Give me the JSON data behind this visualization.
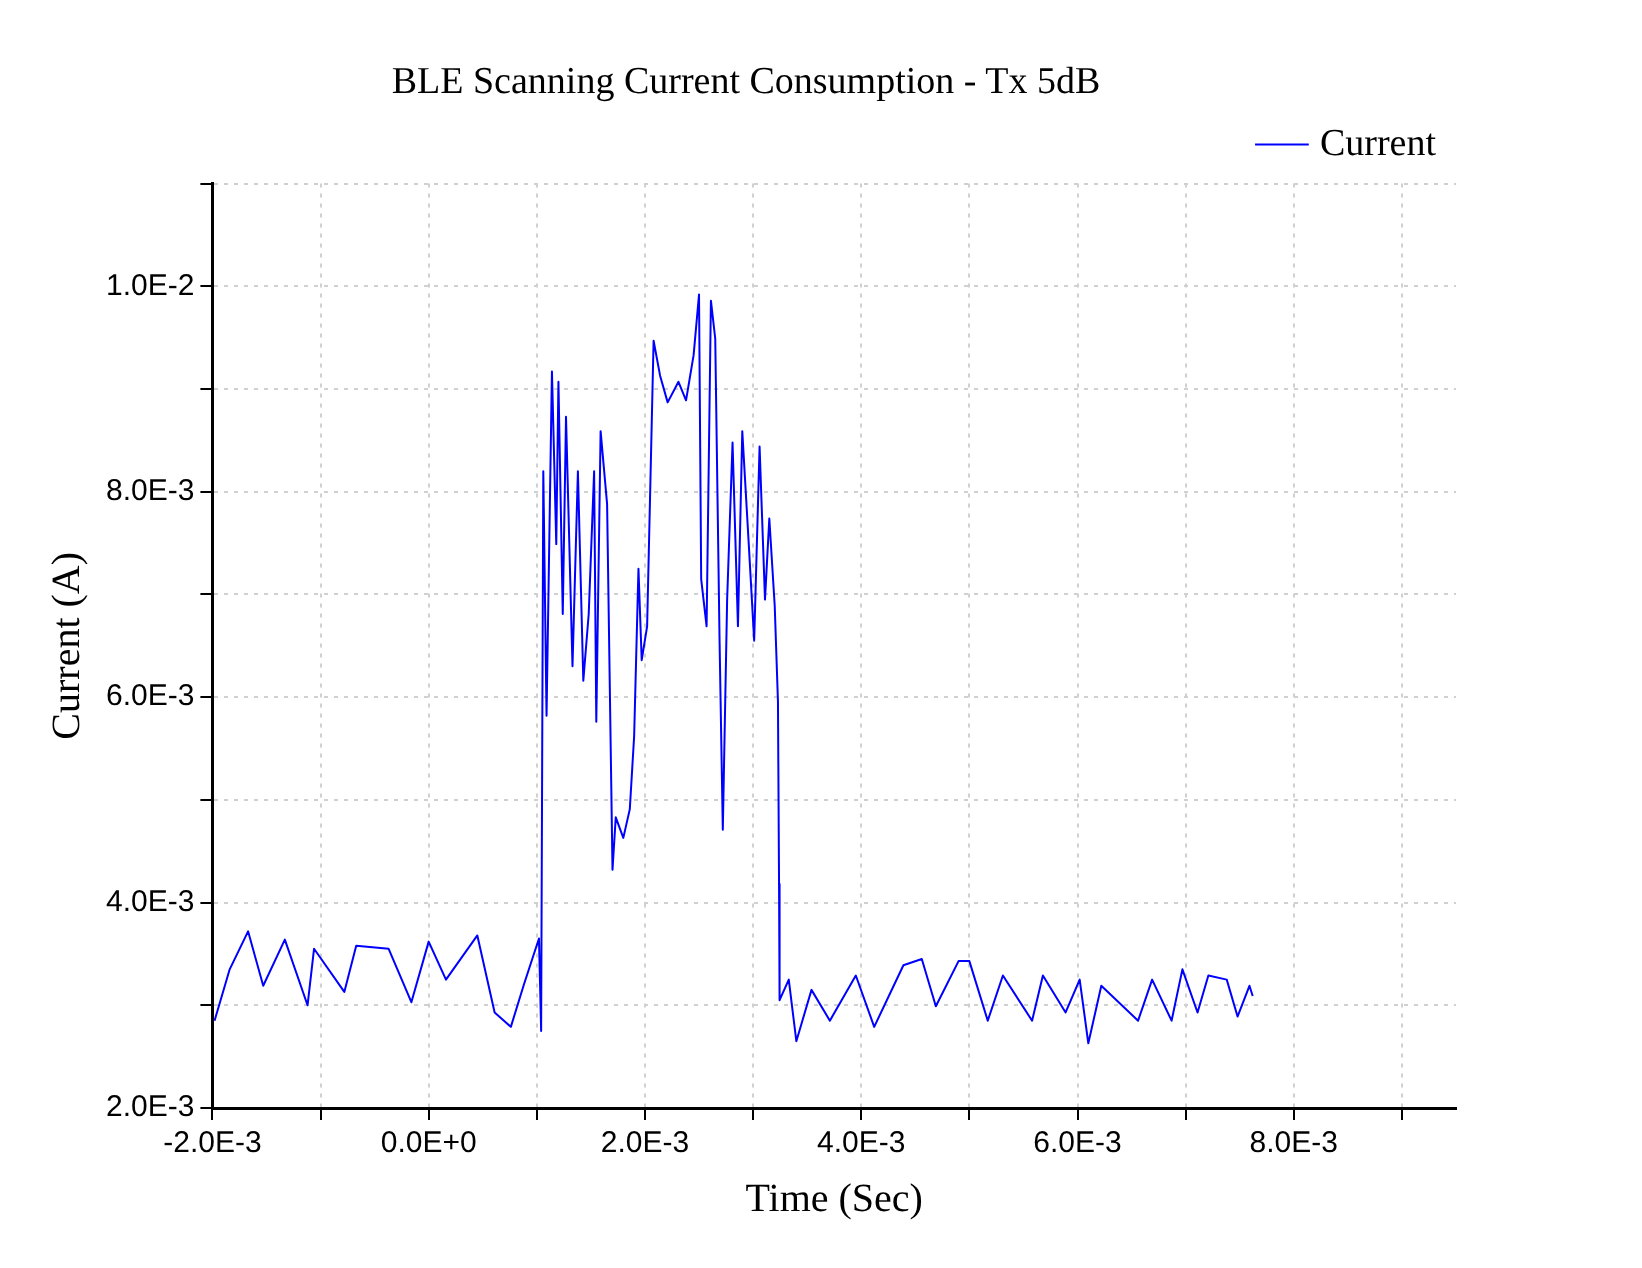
{
  "chart_data": {
    "type": "line",
    "title": "BLE Scanning Current Consumption - Tx 5dB",
    "xlabel": "Time (Sec)",
    "ylabel": "Current (A)",
    "legend": "top right",
    "grid": true,
    "marker": "none",
    "line_style": "solid",
    "xlim": [
      -0.002,
      0.0095
    ],
    "ylim": [
      0.002,
      0.011
    ],
    "xticks": [
      {
        "value": -0.002,
        "label": "-2.0E-3"
      },
      {
        "value": -0.001,
        "label": null
      },
      {
        "value": 0,
        "label": "0.0E+0"
      },
      {
        "value": 0.001,
        "label": null
      },
      {
        "value": 0.002,
        "label": "2.0E-3"
      },
      {
        "value": 0.003,
        "label": null
      },
      {
        "value": 0.004,
        "label": "4.0E-3"
      },
      {
        "value": 0.005,
        "label": null
      },
      {
        "value": 0.006,
        "label": "6.0E-3"
      },
      {
        "value": 0.007,
        "label": null
      },
      {
        "value": 0.008,
        "label": "8.0E-3"
      },
      {
        "value": 0.009,
        "label": null
      }
    ],
    "yticks": [
      {
        "value": 0.002,
        "label": "2.0E-3"
      },
      {
        "value": 0.003,
        "label": null
      },
      {
        "value": 0.004,
        "label": "4.0E-3"
      },
      {
        "value": 0.005,
        "label": null
      },
      {
        "value": 0.006,
        "label": "6.0E-3"
      },
      {
        "value": 0.007,
        "label": null
      },
      {
        "value": 0.008,
        "label": "8.0E-3"
      },
      {
        "value": 0.009,
        "label": null
      },
      {
        "value": 0.01,
        "label": "1.0E-2"
      },
      {
        "value": 0.011,
        "label": null
      }
    ],
    "series": [
      {
        "name": "Current",
        "color": "#0000ff",
        "x": [
          -0.00198,
          -0.00184,
          -0.00167,
          -0.00153,
          -0.00133,
          -0.00112,
          -0.00106,
          -0.00078,
          -0.00067,
          -0.00037,
          -0.00016,
          0,
          0.00016,
          0.00045,
          0.00061,
          0.00076,
          0.00088,
          0.00102,
          0.00104,
          0.00106,
          0.00109,
          0.00114,
          0.00118,
          0.0012,
          0.00124,
          0.00127,
          0.00133,
          0.00138,
          0.00143,
          0.00148,
          0.00153,
          0.00155,
          0.00159,
          0.00165,
          0.0017,
          0.00173,
          0.0018,
          0.00186,
          0.0019,
          0.00194,
          0.00197,
          0.00202,
          0.00208,
          0.00214,
          0.00221,
          0.00231,
          0.00238,
          0.00245,
          0.0025,
          0.00252,
          0.00257,
          0.00261,
          0.00265,
          0.00269,
          0.00272,
          0.00276,
          0.00281,
          0.00286,
          0.0029,
          0.00296,
          0.00301,
          0.00306,
          0.00311,
          0.00315,
          0.0032,
          0.00323,
          0.00324,
          0.003245,
          0.00333,
          0.0034,
          0.00354,
          0.00371,
          0.00395,
          0.00412,
          0.00439,
          0.00456,
          0.00469,
          0.0049,
          0.005,
          0.00517,
          0.00531,
          0.00558,
          0.00568,
          0.00589,
          0.00602,
          0.0061,
          0.00622,
          0.00656,
          0.00669,
          0.00687,
          0.00697,
          0.00711,
          0.00721,
          0.00738,
          0.00748,
          0.00759,
          0.00762
        ],
        "values": [
          0.00285,
          0.00335,
          0.00372,
          0.00319,
          0.00364,
          0.003,
          0.00355,
          0.00313,
          0.00358,
          0.00355,
          0.00303,
          0.00362,
          0.00325,
          0.00368,
          0.00293,
          0.00279,
          0.0032,
          0.00365,
          0.00275,
          0.0082,
          0.00582,
          0.00917,
          0.00749,
          0.00907,
          0.00681,
          0.00873,
          0.0063,
          0.0082,
          0.00616,
          0.00681,
          0.0082,
          0.00576,
          0.00859,
          0.00788,
          0.00432,
          0.00483,
          0.00463,
          0.00491,
          0.00562,
          0.00725,
          0.00636,
          0.00669,
          0.00947,
          0.00913,
          0.00887,
          0.00907,
          0.00889,
          0.00933,
          0.00992,
          0.00715,
          0.00669,
          0.00986,
          0.00949,
          0.00655,
          0.00471,
          0.00695,
          0.00848,
          0.00669,
          0.00859,
          0.00749,
          0.00655,
          0.00844,
          0.00695,
          0.00774,
          0.00689,
          0.00596,
          0.00418,
          0.00305,
          0.00325,
          0.00265,
          0.00315,
          0.00285,
          0.00329,
          0.00279,
          0.00339,
          0.00345,
          0.00299,
          0.00343,
          0.00343,
          0.00285,
          0.00329,
          0.00285,
          0.00329,
          0.00293,
          0.00325,
          0.00263,
          0.00319,
          0.00285,
          0.00325,
          0.00285,
          0.00335,
          0.00293,
          0.00329,
          0.00325,
          0.00289,
          0.00319,
          0.00309
        ]
      }
    ]
  }
}
